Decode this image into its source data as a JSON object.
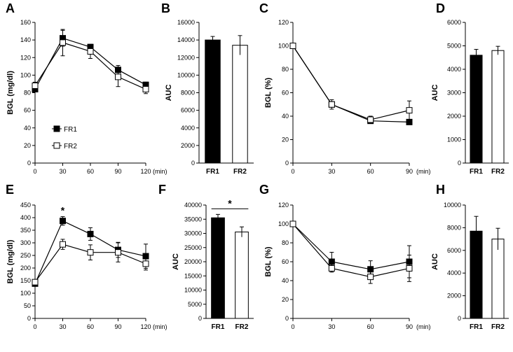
{
  "chart_data": [
    {
      "panel": "A",
      "type": "line",
      "ylabel": "BGL (mg/dl)",
      "xunit": "(min)",
      "x": [
        0,
        30,
        60,
        90,
        120
      ],
      "xlim": [
        0,
        120
      ],
      "xticks": [
        0,
        30,
        60,
        90,
        120
      ],
      "ylim": [
        0,
        160
      ],
      "yticks": [
        0,
        20,
        40,
        60,
        80,
        100,
        120,
        140,
        160
      ],
      "series": [
        {
          "name": "FR1",
          "marker": "filled",
          "values": [
            84,
            142,
            132,
            106,
            89
          ],
          "err": [
            3,
            9,
            3,
            5,
            3
          ]
        },
        {
          "name": "FR2",
          "marker": "open",
          "values": [
            88,
            137,
            127,
            98,
            84
          ],
          "err": [
            4,
            15,
            8,
            11,
            5
          ]
        }
      ],
      "legend": [
        "FR1",
        "FR2"
      ],
      "annotations": []
    },
    {
      "panel": "B",
      "type": "bar",
      "ylabel": "AUC",
      "categories": [
        "FR1",
        "FR2"
      ],
      "ylim": [
        0,
        16000
      ],
      "yticks": [
        0,
        2000,
        4000,
        6000,
        8000,
        10000,
        12000,
        14000,
        16000
      ],
      "values": [
        14000,
        13400
      ],
      "err": [
        400,
        1100
      ],
      "fills": [
        "filled",
        "open"
      ],
      "annotations": []
    },
    {
      "panel": "C",
      "type": "line",
      "ylabel": "BGL (%)",
      "xunit": "(min)",
      "x": [
        0,
        30,
        60,
        90
      ],
      "xlim": [
        0,
        90
      ],
      "xticks": [
        0,
        30,
        60,
        90
      ],
      "ylim": [
        0,
        120
      ],
      "yticks": [
        0,
        20,
        40,
        60,
        80,
        100,
        120
      ],
      "series": [
        {
          "name": "FR1",
          "marker": "filled",
          "values": [
            100,
            50,
            36,
            35
          ],
          "err": [
            0,
            2,
            2,
            2
          ]
        },
        {
          "name": "FR2",
          "marker": "open",
          "values": [
            100,
            50,
            37,
            45
          ],
          "err": [
            0,
            4,
            3,
            8
          ]
        }
      ],
      "annotations": []
    },
    {
      "panel": "D",
      "type": "bar",
      "ylabel": "AUC",
      "categories": [
        "FR1",
        "FR2"
      ],
      "ylim": [
        0,
        6000
      ],
      "yticks": [
        0,
        1000,
        2000,
        3000,
        4000,
        5000,
        6000
      ],
      "values": [
        4600,
        4800
      ],
      "err": [
        250,
        180
      ],
      "fills": [
        "filled",
        "open"
      ],
      "annotations": []
    },
    {
      "panel": "E",
      "type": "line",
      "ylabel": "BGL (mg/dl)",
      "xunit": "(min)",
      "x": [
        0,
        30,
        60,
        90,
        120
      ],
      "xlim": [
        0,
        120
      ],
      "xticks": [
        0,
        30,
        60,
        90,
        120
      ],
      "ylim": [
        0,
        450
      ],
      "yticks": [
        0,
        50,
        100,
        150,
        200,
        250,
        300,
        350,
        400,
        450
      ],
      "series": [
        {
          "name": "FR1",
          "marker": "filled",
          "values": [
            138,
            387,
            335,
            272,
            247
          ],
          "err": [
            6,
            17,
            25,
            30,
            48
          ]
        },
        {
          "name": "FR2",
          "marker": "open",
          "values": [
            144,
            294,
            262,
            262,
            217
          ],
          "err": [
            8,
            20,
            30,
            38,
            25
          ]
        }
      ],
      "annotations": [
        {
          "text": "*",
          "x": 30
        }
      ]
    },
    {
      "panel": "F",
      "type": "bar",
      "ylabel": "AUC",
      "categories": [
        "FR1",
        "FR2"
      ],
      "ylim": [
        0,
        40000
      ],
      "yticks": [
        0,
        5000,
        10000,
        15000,
        20000,
        25000,
        30000,
        35000,
        40000
      ],
      "values": [
        35500,
        30500
      ],
      "err": [
        1200,
        1800
      ],
      "fills": [
        "filled",
        "open"
      ],
      "annotations": [
        {
          "text": "*",
          "type": "bracket"
        }
      ]
    },
    {
      "panel": "G",
      "type": "line",
      "ylabel": "BGL (%)",
      "xunit": "(min)",
      "x": [
        0,
        30,
        60,
        90
      ],
      "xlim": [
        0,
        90
      ],
      "xticks": [
        0,
        30,
        60,
        90
      ],
      "ylim": [
        0,
        120
      ],
      "yticks": [
        0,
        20,
        40,
        60,
        80,
        100,
        120
      ],
      "series": [
        {
          "name": "FR1",
          "marker": "filled",
          "values": [
            100,
            60,
            52,
            60
          ],
          "err": [
            0,
            10,
            9,
            17
          ]
        },
        {
          "name": "FR2",
          "marker": "open",
          "values": [
            100,
            53,
            44,
            53
          ],
          "err": [
            0,
            4,
            7,
            14
          ]
        }
      ],
      "annotations": []
    },
    {
      "panel": "H",
      "type": "bar",
      "ylabel": "AUC",
      "categories": [
        "FR1",
        "FR2"
      ],
      "ylim": [
        0,
        10000
      ],
      "yticks": [
        0,
        2000,
        4000,
        6000,
        8000,
        10000
      ],
      "values": [
        7700,
        7000
      ],
      "err": [
        1300,
        950
      ],
      "fills": [
        "filled",
        "open"
      ],
      "annotations": []
    }
  ]
}
